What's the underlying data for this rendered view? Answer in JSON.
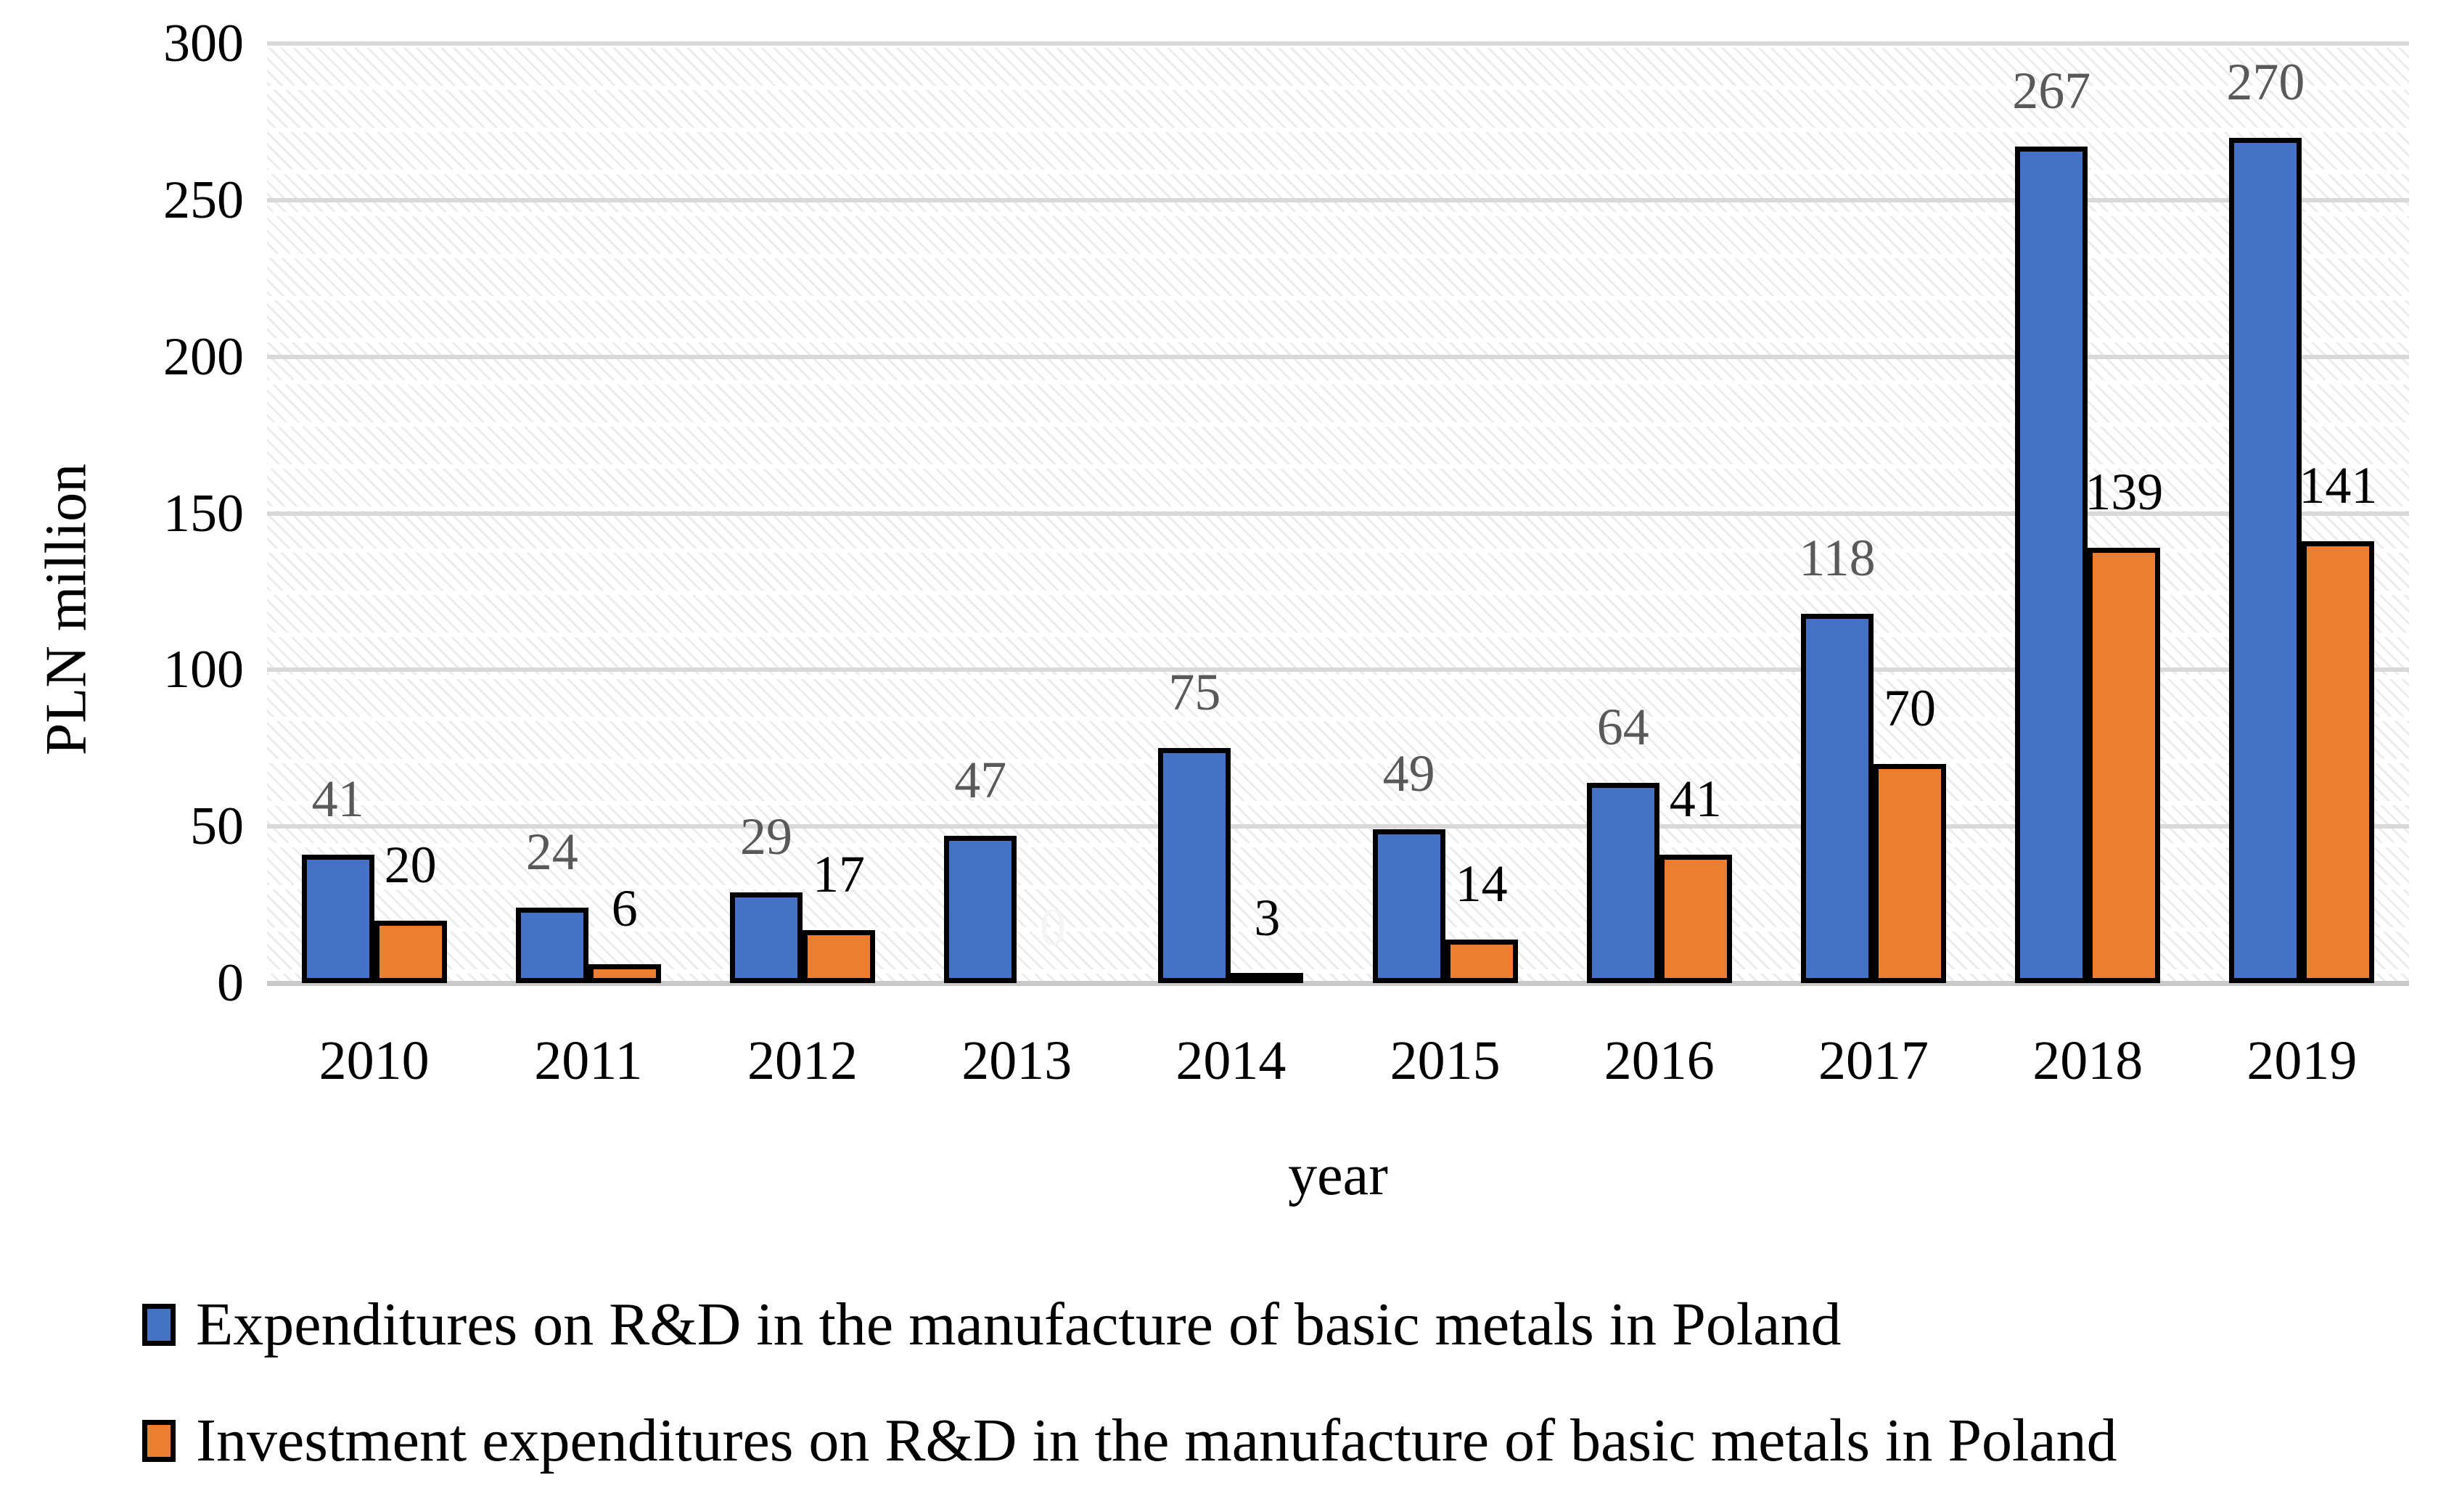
{
  "chart_data": {
    "type": "bar",
    "title": "",
    "categories": [
      "2010",
      "2011",
      "2012",
      "2013",
      "2014",
      "2015",
      "2016",
      "2017",
      "2018",
      "2019"
    ],
    "series": [
      {
        "name": "Expenditures on R&D in the manufacture of basic metals in Poland",
        "color": "#4472C4",
        "label_color": "#595959",
        "values": [
          41,
          24,
          29,
          47,
          75,
          49,
          64,
          118,
          267,
          270
        ]
      },
      {
        "name": "Investment expenditures on R&D in the manufacture of basic metals in Poland",
        "color": "#ED7D31",
        "label_color": "#000000",
        "values": [
          20,
          6,
          17,
          0,
          3,
          14,
          41,
          70,
          139,
          141
        ]
      }
    ],
    "xlabel": "year",
    "ylabel": "PLN million",
    "ylim": [
      0,
      300
    ],
    "yticks": [
      0,
      50,
      100,
      150,
      200,
      250,
      300
    ],
    "grid": true,
    "gridline_color": "#D9D9D9",
    "axis_line_color": "#C9C9C9",
    "plot_background": "light-gray diagonal hatch with horizontal banding",
    "data_labels_shown": true,
    "zero_value_label_color": "#F5F5F5",
    "legend_position": "bottom-left",
    "bar_border_color": "#000000"
  }
}
